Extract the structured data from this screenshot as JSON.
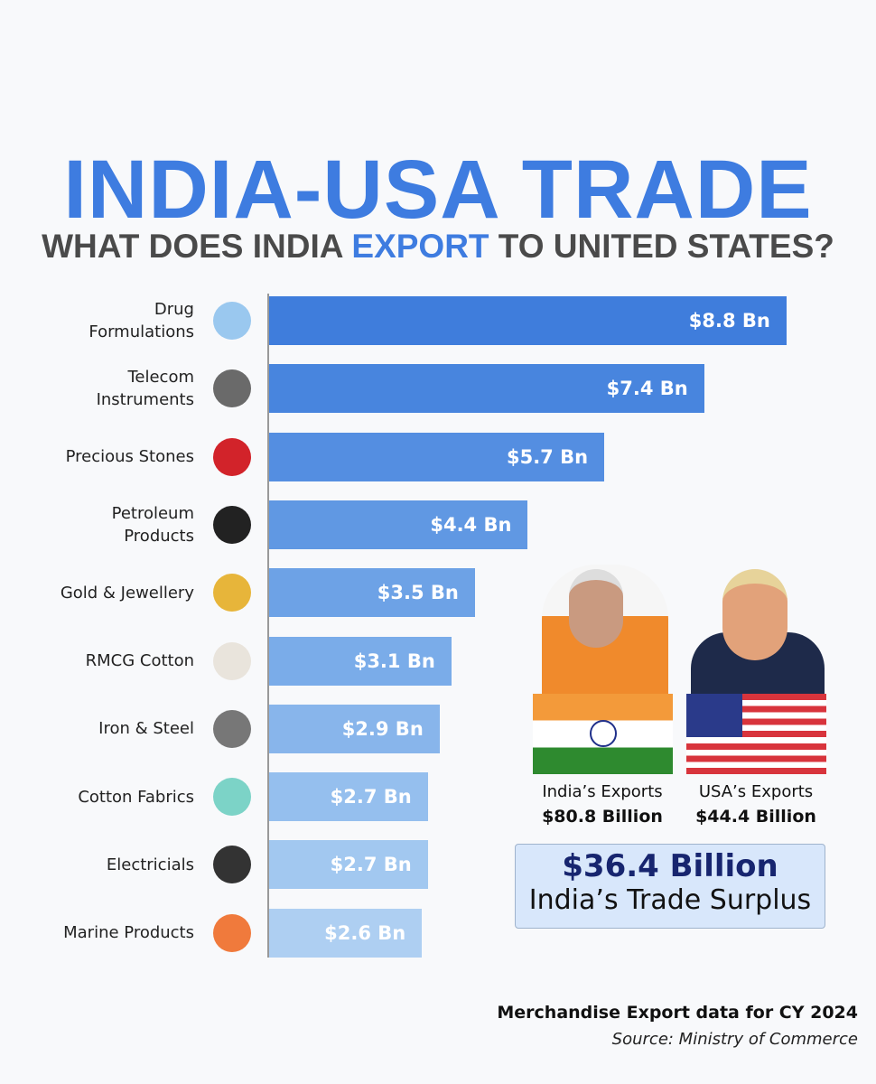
{
  "chart_data": {
    "type": "bar",
    "orientation": "horizontal",
    "title": "INDIA-USA TRADE",
    "subtitle_parts": [
      "WHAT DOES INDIA ",
      "EXPORT",
      " TO UNITED STATES?"
    ],
    "categories": [
      "Drug\nFormulations",
      "Telecom\nInstruments",
      "Precious Stones",
      "Petroleum\nProducts",
      "Gold & Jewellery",
      "RMCG Cotton",
      "Iron & Steel",
      "Cotton Fabrics",
      "Electricials",
      "Marine Products"
    ],
    "values": [
      8.8,
      7.4,
      5.7,
      4.4,
      3.5,
      3.1,
      2.9,
      2.7,
      2.7,
      2.6
    ],
    "value_labels": [
      "$8.8 Bn",
      "$7.4 Bn",
      "$5.7 Bn",
      "$4.4 Bn",
      "$3.5 Bn",
      "$3.1 Bn",
      "$2.9 Bn",
      "$2.7 Bn",
      "$2.7 Bn",
      "$2.6 Bn"
    ],
    "colors": [
      "#3f7ddc",
      "#4885de",
      "#548ee1",
      "#6098e3",
      "#6da2e6",
      "#7aace9",
      "#88b5eb",
      "#95bfee",
      "#a2c8f0",
      "#aecff2"
    ]
  },
  "panel": {
    "india_label": "India’s Exports",
    "india_value": "$80.8 Billion",
    "usa_label": "USA’s Exports",
    "usa_value": "$44.4 Billion",
    "surplus_value": "$36.4 Billion",
    "surplus_label": "India’s Trade Surplus"
  },
  "footer": {
    "note": "Merchandise Export data for CY 2024",
    "source": "Source: Ministry of Commerce"
  }
}
